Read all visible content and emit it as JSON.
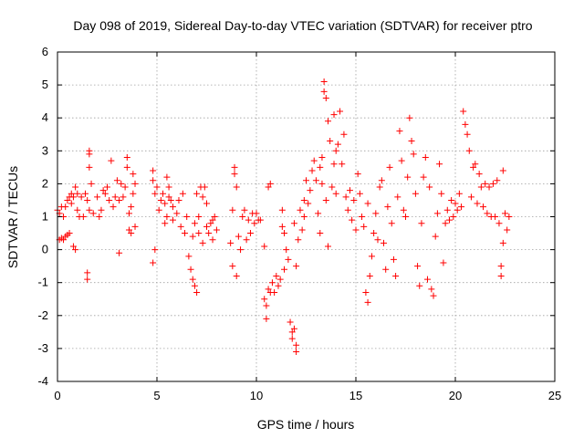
{
  "chart_data": {
    "type": "scatter",
    "title": "Day 098 of 2019, Sidereal Day-to-day VTEC variation (SDTVAR) for receiver ptro",
    "xlabel": "GPS time / hours",
    "ylabel": "SDTVAR / TECUs",
    "xlim": [
      0,
      25
    ],
    "ylim": [
      -4,
      6
    ],
    "xticks": [
      0,
      5,
      10,
      15,
      20,
      25
    ],
    "yticks": [
      -4,
      -3,
      -2,
      -1,
      0,
      1,
      2,
      3,
      4,
      5,
      6
    ],
    "grid": true,
    "marker": "+",
    "series": [
      {
        "name": "SDTVAR",
        "color": "#ff0000",
        "points": [
          [
            0.0,
            1.2
          ],
          [
            0.1,
            1.1
          ],
          [
            0.1,
            0.3
          ],
          [
            0.2,
            1.3
          ],
          [
            0.2,
            0.35
          ],
          [
            0.3,
            1.0
          ],
          [
            0.3,
            0.3
          ],
          [
            0.4,
            1.3
          ],
          [
            0.4,
            0.4
          ],
          [
            0.5,
            1.5
          ],
          [
            0.5,
            0.45
          ],
          [
            0.6,
            1.6
          ],
          [
            0.6,
            0.5
          ],
          [
            0.7,
            1.7
          ],
          [
            0.7,
            1.4
          ],
          [
            0.8,
            1.6
          ],
          [
            0.8,
            0.1
          ],
          [
            0.9,
            1.9
          ],
          [
            0.9,
            0.0
          ],
          [
            1.0,
            1.2
          ],
          [
            1.0,
            1.7
          ],
          [
            1.1,
            1.0
          ],
          [
            1.2,
            1.6
          ],
          [
            1.3,
            1.0
          ],
          [
            1.4,
            1.7
          ],
          [
            1.5,
            1.5
          ],
          [
            1.5,
            -0.7
          ],
          [
            1.5,
            -0.9
          ],
          [
            1.6,
            2.9
          ],
          [
            1.6,
            3.0
          ],
          [
            1.6,
            2.5
          ],
          [
            1.6,
            1.2
          ],
          [
            1.7,
            2.0
          ],
          [
            1.8,
            1.1
          ],
          [
            2.0,
            1.6
          ],
          [
            2.1,
            1.0
          ],
          [
            2.2,
            1.2
          ],
          [
            2.3,
            1.8
          ],
          [
            2.4,
            1.7
          ],
          [
            2.5,
            1.9
          ],
          [
            2.6,
            1.5
          ],
          [
            2.7,
            2.7
          ],
          [
            2.8,
            1.3
          ],
          [
            2.9,
            1.6
          ],
          [
            3.0,
            2.1
          ],
          [
            3.1,
            1.5
          ],
          [
            3.1,
            -0.1
          ],
          [
            3.2,
            2.0
          ],
          [
            3.3,
            1.6
          ],
          [
            3.4,
            1.9
          ],
          [
            3.5,
            2.5
          ],
          [
            3.5,
            2.8
          ],
          [
            3.6,
            1.1
          ],
          [
            3.6,
            0.6
          ],
          [
            3.7,
            1.3
          ],
          [
            3.7,
            0.5
          ],
          [
            3.8,
            2.3
          ],
          [
            3.8,
            1.7
          ],
          [
            3.9,
            2.0
          ],
          [
            3.9,
            0.7
          ],
          [
            4.8,
            2.4
          ],
          [
            4.8,
            2.1
          ],
          [
            4.8,
            -0.4
          ],
          [
            4.9,
            1.7
          ],
          [
            4.9,
            0.0
          ],
          [
            5.0,
            1.9
          ],
          [
            5.1,
            1.2
          ],
          [
            5.2,
            1.5
          ],
          [
            5.3,
            1.7
          ],
          [
            5.4,
            1.4
          ],
          [
            5.4,
            0.8
          ],
          [
            5.5,
            2.2
          ],
          [
            5.5,
            1.0
          ],
          [
            5.6,
            1.6
          ],
          [
            5.6,
            1.9
          ],
          [
            5.7,
            1.5
          ],
          [
            5.8,
            1.3
          ],
          [
            5.8,
            0.9
          ],
          [
            6.0,
            1.1
          ],
          [
            6.1,
            1.5
          ],
          [
            6.2,
            0.7
          ],
          [
            6.3,
            1.7
          ],
          [
            6.4,
            0.5
          ],
          [
            6.5,
            1.0
          ],
          [
            6.6,
            -0.2
          ],
          [
            6.7,
            -0.6
          ],
          [
            6.8,
            -0.9
          ],
          [
            6.8,
            0.4
          ],
          [
            6.9,
            -1.1
          ],
          [
            6.9,
            0.8
          ],
          [
            7.0,
            -1.3
          ],
          [
            7.0,
            1.7
          ],
          [
            7.1,
            1.0
          ],
          [
            7.1,
            0.5
          ],
          [
            7.2,
            1.9
          ],
          [
            7.3,
            1.6
          ],
          [
            7.3,
            0.2
          ],
          [
            7.4,
            1.9
          ],
          [
            7.5,
            0.7
          ],
          [
            7.5,
            1.4
          ],
          [
            7.6,
            0.5
          ],
          [
            7.7,
            0.8
          ],
          [
            7.8,
            0.9
          ],
          [
            7.8,
            0.3
          ],
          [
            7.9,
            1.0
          ],
          [
            8.0,
            0.6
          ],
          [
            8.7,
            0.2
          ],
          [
            8.8,
            1.2
          ],
          [
            8.8,
            -0.5
          ],
          [
            8.9,
            2.3
          ],
          [
            8.9,
            2.5
          ],
          [
            9.0,
            1.9
          ],
          [
            9.0,
            -0.8
          ],
          [
            9.1,
            0.4
          ],
          [
            9.2,
            0.0
          ],
          [
            9.3,
            1.0
          ],
          [
            9.4,
            1.2
          ],
          [
            9.5,
            0.3
          ],
          [
            9.6,
            0.9
          ],
          [
            9.7,
            0.5
          ],
          [
            9.8,
            1.1
          ],
          [
            9.9,
            0.8
          ],
          [
            10.0,
            1.1
          ],
          [
            10.1,
            0.9
          ],
          [
            10.2,
            0.9
          ],
          [
            10.4,
            -1.5
          ],
          [
            10.4,
            0.1
          ],
          [
            10.5,
            -1.7
          ],
          [
            10.5,
            -2.1
          ],
          [
            10.6,
            -1.2
          ],
          [
            10.6,
            1.9
          ],
          [
            10.7,
            -1.3
          ],
          [
            10.7,
            2.0
          ],
          [
            10.8,
            -1.0
          ],
          [
            10.9,
            -1.3
          ],
          [
            11.0,
            -0.8
          ],
          [
            11.1,
            -1.1
          ],
          [
            11.2,
            -0.9
          ],
          [
            11.3,
            1.2
          ],
          [
            11.3,
            0.7
          ],
          [
            11.4,
            0.5
          ],
          [
            11.4,
            -0.6
          ],
          [
            11.5,
            0.0
          ],
          [
            11.6,
            -0.3
          ],
          [
            11.7,
            -2.2
          ],
          [
            11.8,
            -2.5
          ],
          [
            11.8,
            -2.7
          ],
          [
            11.9,
            -2.4
          ],
          [
            12.0,
            -2.9
          ],
          [
            12.0,
            -3.1
          ],
          [
            11.9,
            0.8
          ],
          [
            12.0,
            -0.5
          ],
          [
            12.1,
            0.3
          ],
          [
            12.2,
            1.2
          ],
          [
            12.3,
            0.6
          ],
          [
            12.4,
            1.0
          ],
          [
            12.4,
            1.5
          ],
          [
            12.5,
            2.1
          ],
          [
            12.6,
            1.4
          ],
          [
            12.7,
            1.8
          ],
          [
            12.8,
            2.4
          ],
          [
            12.9,
            2.7
          ],
          [
            13.0,
            2.1
          ],
          [
            13.1,
            1.1
          ],
          [
            13.2,
            2.5
          ],
          [
            13.2,
            0.5
          ],
          [
            13.3,
            2.0
          ],
          [
            13.3,
            2.8
          ],
          [
            13.4,
            4.8
          ],
          [
            13.4,
            5.1
          ],
          [
            13.5,
            4.6
          ],
          [
            13.5,
            1.5
          ],
          [
            13.6,
            3.9
          ],
          [
            13.6,
            0.1
          ],
          [
            13.7,
            3.3
          ],
          [
            13.8,
            1.9
          ],
          [
            13.9,
            2.6
          ],
          [
            13.9,
            4.1
          ],
          [
            14.0,
            3.0
          ],
          [
            14.0,
            1.7
          ],
          [
            14.1,
            3.2
          ],
          [
            14.2,
            4.2
          ],
          [
            14.3,
            2.6
          ],
          [
            14.4,
            3.5
          ],
          [
            14.5,
            1.6
          ],
          [
            14.6,
            1.2
          ],
          [
            14.7,
            1.8
          ],
          [
            14.8,
            0.9
          ],
          [
            14.9,
            1.5
          ],
          [
            15.0,
            0.6
          ],
          [
            15.1,
            2.3
          ],
          [
            15.2,
            1.7
          ],
          [
            15.3,
            1.0
          ],
          [
            15.4,
            0.7
          ],
          [
            15.5,
            -1.3
          ],
          [
            15.6,
            -1.6
          ],
          [
            15.6,
            1.4
          ],
          [
            15.7,
            -0.8
          ],
          [
            15.8,
            -0.2
          ],
          [
            15.9,
            0.5
          ],
          [
            16.0,
            1.1
          ],
          [
            16.1,
            0.3
          ],
          [
            16.2,
            1.9
          ],
          [
            16.3,
            2.1
          ],
          [
            16.4,
            0.2
          ],
          [
            16.5,
            -0.6
          ],
          [
            16.6,
            1.3
          ],
          [
            16.7,
            2.5
          ],
          [
            16.8,
            0.8
          ],
          [
            16.9,
            -0.3
          ],
          [
            17.0,
            -0.8
          ],
          [
            17.1,
            1.6
          ],
          [
            17.2,
            3.6
          ],
          [
            17.3,
            2.7
          ],
          [
            17.4,
            1.2
          ],
          [
            17.5,
            1.0
          ],
          [
            17.6,
            2.2
          ],
          [
            17.7,
            4.0
          ],
          [
            17.8,
            3.3
          ],
          [
            17.9,
            2.9
          ],
          [
            18.0,
            1.7
          ],
          [
            18.1,
            -0.5
          ],
          [
            18.2,
            -1.1
          ],
          [
            18.3,
            0.8
          ],
          [
            18.4,
            2.2
          ],
          [
            18.5,
            2.8
          ],
          [
            18.6,
            -0.9
          ],
          [
            18.7,
            1.9
          ],
          [
            18.8,
            -1.2
          ],
          [
            18.9,
            -1.4
          ],
          [
            19.0,
            0.4
          ],
          [
            19.1,
            1.1
          ],
          [
            19.2,
            2.6
          ],
          [
            19.3,
            1.7
          ],
          [
            19.4,
            -0.4
          ],
          [
            19.5,
            0.8
          ],
          [
            19.6,
            1.2
          ],
          [
            19.7,
            0.9
          ],
          [
            19.8,
            1.5
          ],
          [
            19.9,
            1.0
          ],
          [
            20.0,
            1.4
          ],
          [
            20.1,
            1.2
          ],
          [
            20.2,
            1.7
          ],
          [
            20.3,
            1.3
          ],
          [
            20.4,
            4.2
          ],
          [
            20.5,
            3.8
          ],
          [
            20.6,
            3.5
          ],
          [
            20.7,
            3.0
          ],
          [
            20.8,
            1.6
          ],
          [
            20.9,
            2.5
          ],
          [
            21.0,
            2.6
          ],
          [
            21.1,
            1.4
          ],
          [
            21.2,
            2.3
          ],
          [
            21.3,
            1.9
          ],
          [
            21.4,
            1.3
          ],
          [
            21.5,
            2.0
          ],
          [
            21.6,
            1.1
          ],
          [
            21.7,
            1.9
          ],
          [
            21.8,
            1.0
          ],
          [
            21.9,
            2.0
          ],
          [
            22.0,
            1.0
          ],
          [
            22.1,
            2.1
          ],
          [
            22.2,
            0.8
          ],
          [
            22.3,
            -0.5
          ],
          [
            22.3,
            -0.8
          ],
          [
            22.4,
            0.2
          ],
          [
            22.4,
            2.4
          ],
          [
            22.5,
            1.1
          ],
          [
            22.6,
            0.6
          ],
          [
            22.7,
            1.0
          ]
        ]
      }
    ]
  }
}
